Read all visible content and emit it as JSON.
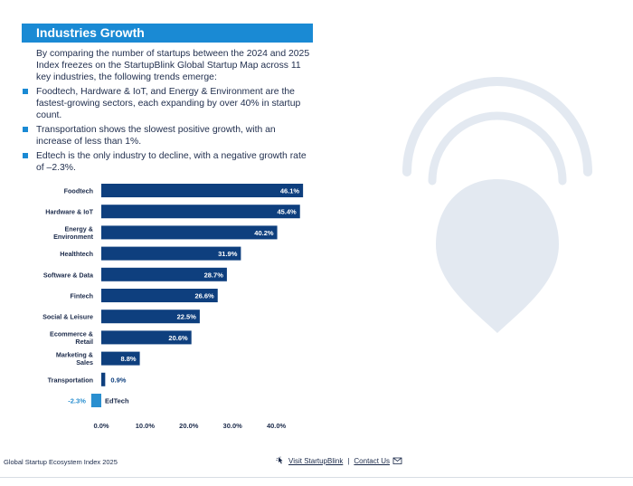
{
  "section_title": "Industries Growth",
  "intro": "By comparing the number of startups between the 2024 and 2025 Index freezes on the StartupBlink Global Startup Map across 11 key industries, the following trends emerge:",
  "bullets": [
    "Foodtech, Hardware & IoT, and Energy & Environment are the fastest-growing sectors, each expanding by over 40% in startup count.",
    "Transportation shows the slowest positive growth, with an increase of less than 1%.",
    "Edtech is the only industry to decline, with a negative growth rate of –2.3%."
  ],
  "footer": {
    "left": "Global Startup Ecosystem Index 2025",
    "visit": "Visit StartupBlink",
    "separator": "|",
    "contact": "Contact Us"
  },
  "colors": {
    "accent": "#1a8ad4",
    "bar_positive": "#0e3f7e",
    "bar_negative": "#2a8fd0",
    "text": "#1b2a4a",
    "pin": "#e3e9f1"
  },
  "icons": [
    "location-pin-watermark-icon",
    "pointer-icon",
    "mail-icon"
  ],
  "chart_data": {
    "type": "bar",
    "orientation": "horizontal",
    "categories": [
      "Foodtech",
      "Hardware & IoT",
      "Energy & Environment",
      "Healthtech",
      "Software & Data",
      "Fintech",
      "Social & Leisure",
      "Ecommerce & Retail",
      "Marketing & Sales",
      "Transportation",
      "EdTech"
    ],
    "values": [
      46.1,
      45.4,
      40.2,
      31.9,
      28.7,
      26.6,
      22.5,
      20.6,
      8.8,
      0.9,
      -2.3
    ],
    "data_labels": [
      "46.1%",
      "45.4%",
      "40.2%",
      "31.9%",
      "28.7%",
      "26.6%",
      "22.5%",
      "20.6%",
      "8.8%",
      "0.9%",
      "-2.3%"
    ],
    "x_ticks": [
      "0.0%",
      "10.0%",
      "20.0%",
      "30.0%",
      "40.0%"
    ],
    "xlim": [
      0,
      40
    ],
    "grid": false,
    "legend": "none"
  }
}
